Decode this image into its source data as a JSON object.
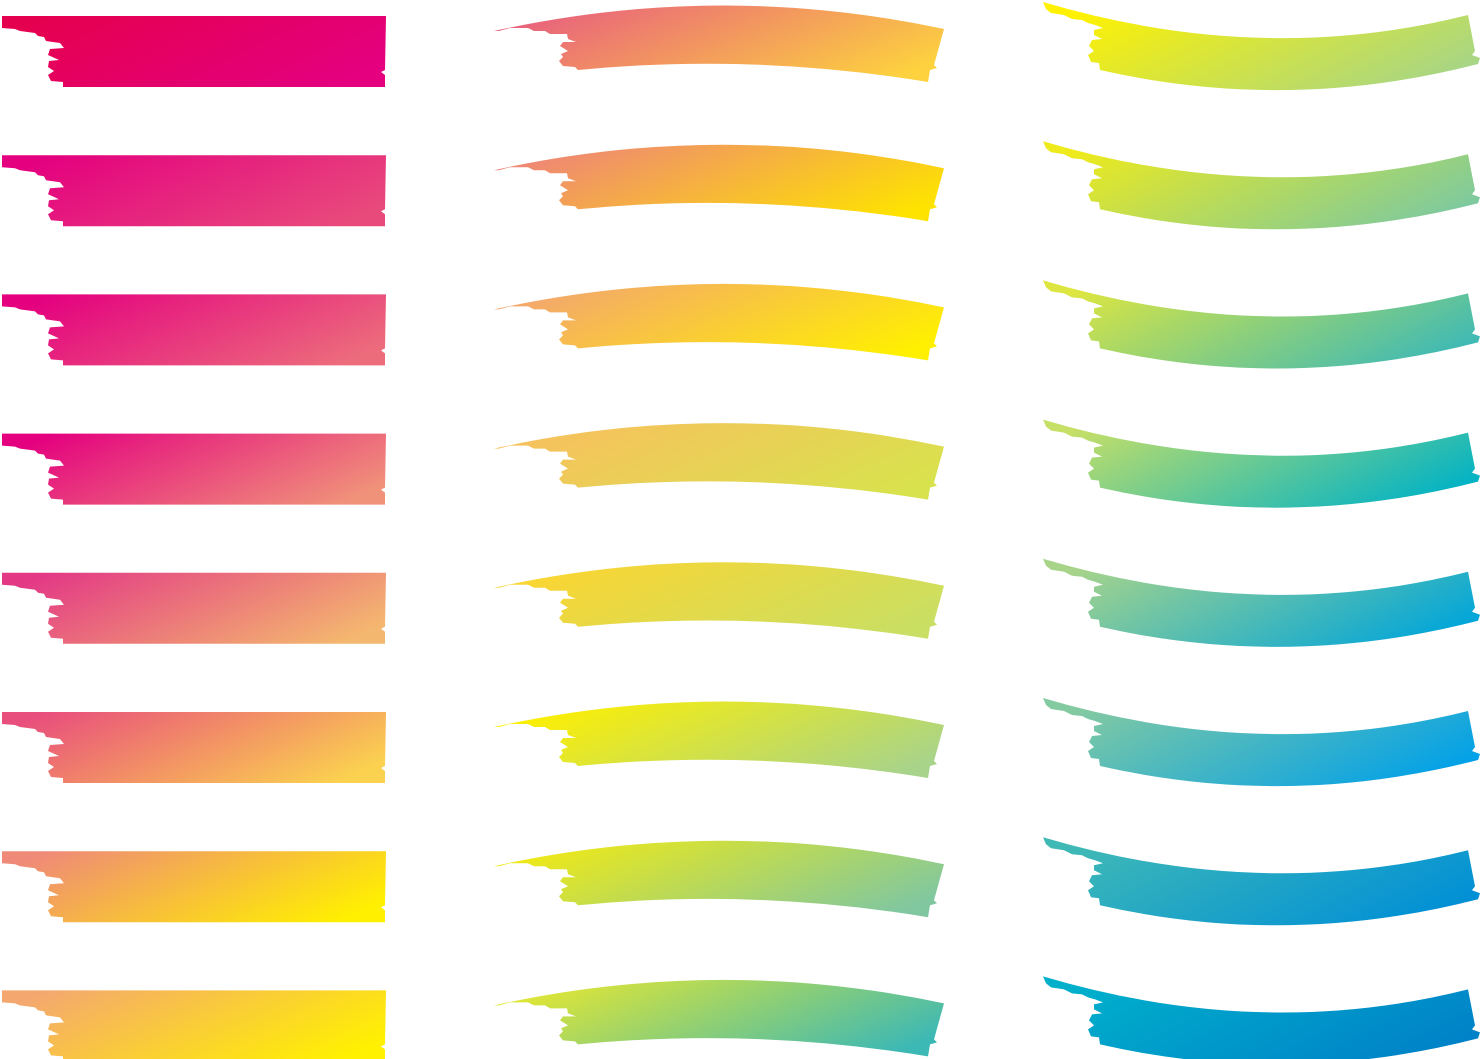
{
  "sheet": {
    "background": "#ffffff",
    "columns": [
      {
        "style": "straight",
        "rows": [
          {
            "from": "#e5004f",
            "to": "#e4007f"
          },
          {
            "from": "#e4007f",
            "to": "#e84a7c"
          },
          {
            "from": "#e4007f",
            "to": "#ec6c7c"
          },
          {
            "from": "#e4007f",
            "to": "#f0917a"
          },
          {
            "from": "#e33985",
            "to": "#f4b76f"
          },
          {
            "from": "#e94f7c",
            "to": "#fbd24f"
          },
          {
            "from": "#ef8a78",
            "to": "#fff000"
          },
          {
            "from": "#f4a86f",
            "to": "#fff100"
          }
        ]
      },
      {
        "style": "arc",
        "rows": [
          {
            "from": "#e8607e",
            "to": "#fdd23e"
          },
          {
            "from": "#ee8479",
            "to": "#fee300"
          },
          {
            "from": "#f3a570",
            "to": "#fff000"
          },
          {
            "from": "#f8c05e",
            "to": "#d8e24d"
          },
          {
            "from": "#fcd531",
            "to": "#c9df63"
          },
          {
            "from": "#fff000",
            "to": "#a8d38a"
          },
          {
            "from": "#f1ea14",
            "to": "#80c7a0"
          },
          {
            "from": "#e4e732",
            "to": "#3cb8b5"
          }
        ]
      },
      {
        "style": "wave",
        "rows": [
          {
            "from": "#fff100",
            "to": "#a6d587"
          },
          {
            "from": "#eeea1c",
            "to": "#7cc9a0"
          },
          {
            "from": "#dde640",
            "to": "#3db9b6"
          },
          {
            "from": "#c6df66",
            "to": "#00b2c6"
          },
          {
            "from": "#a8d48a",
            "to": "#00a5da"
          },
          {
            "from": "#84caa0",
            "to": "#00a0e9"
          },
          {
            "from": "#3fb9b6",
            "to": "#008fd6"
          },
          {
            "from": "#00b0cb",
            "to": "#0081c8"
          }
        ]
      }
    ]
  }
}
